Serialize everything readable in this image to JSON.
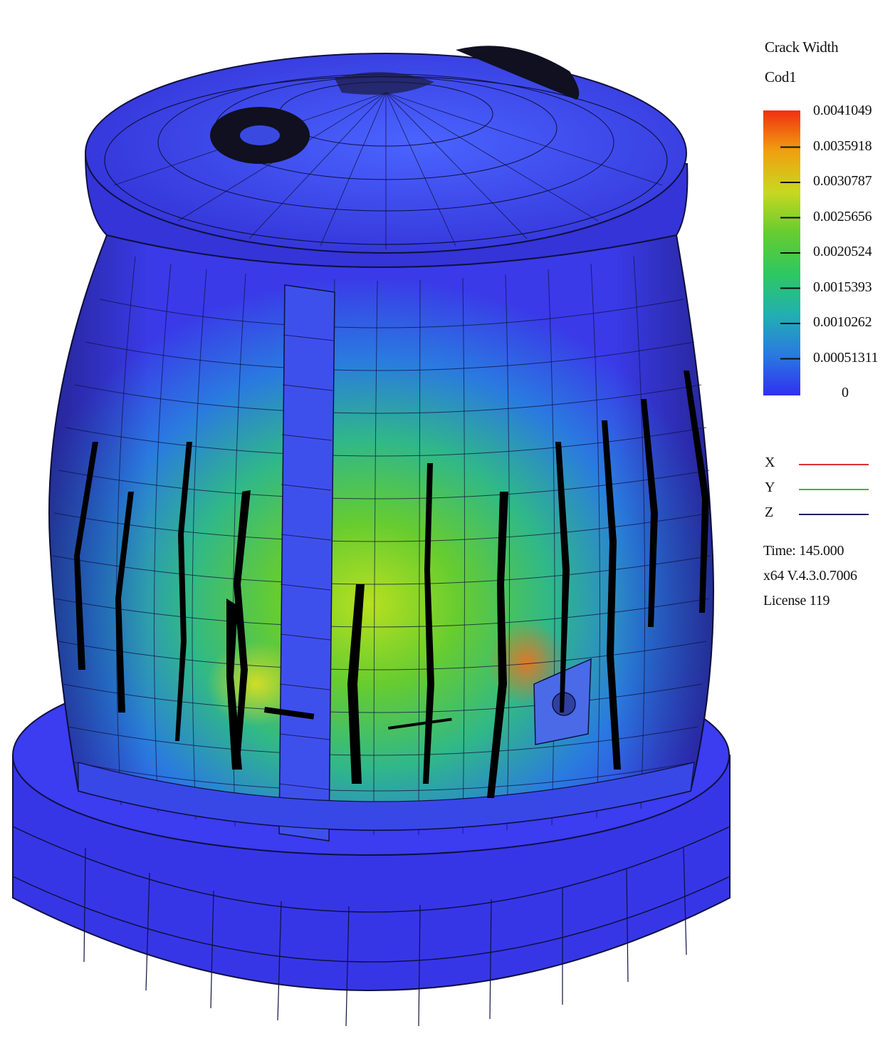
{
  "legend": {
    "title_line1": "Crack Width",
    "title_line2": "Cod1",
    "colors": [
      "#3030f0",
      "#2a7ae0",
      "#22b0b0",
      "#2ec860",
      "#66cc30",
      "#c8d820",
      "#f0a010",
      "#f03010"
    ],
    "ticks": [
      "0.0041049",
      "0.0035918",
      "0.0030787",
      "0.0025656",
      "0.0020524",
      "0.0015393",
      "0.0010262",
      "0.00051311",
      "0"
    ]
  },
  "axes": [
    {
      "label": "X",
      "color": "#e03030"
    },
    {
      "label": "Y",
      "color": "#30c030"
    },
    {
      "label": "Z",
      "color": "#202060"
    }
  ],
  "info": {
    "time": "Time:  145.000",
    "version": "x64 V.4.3.0.7006",
    "license": "License 119"
  }
}
